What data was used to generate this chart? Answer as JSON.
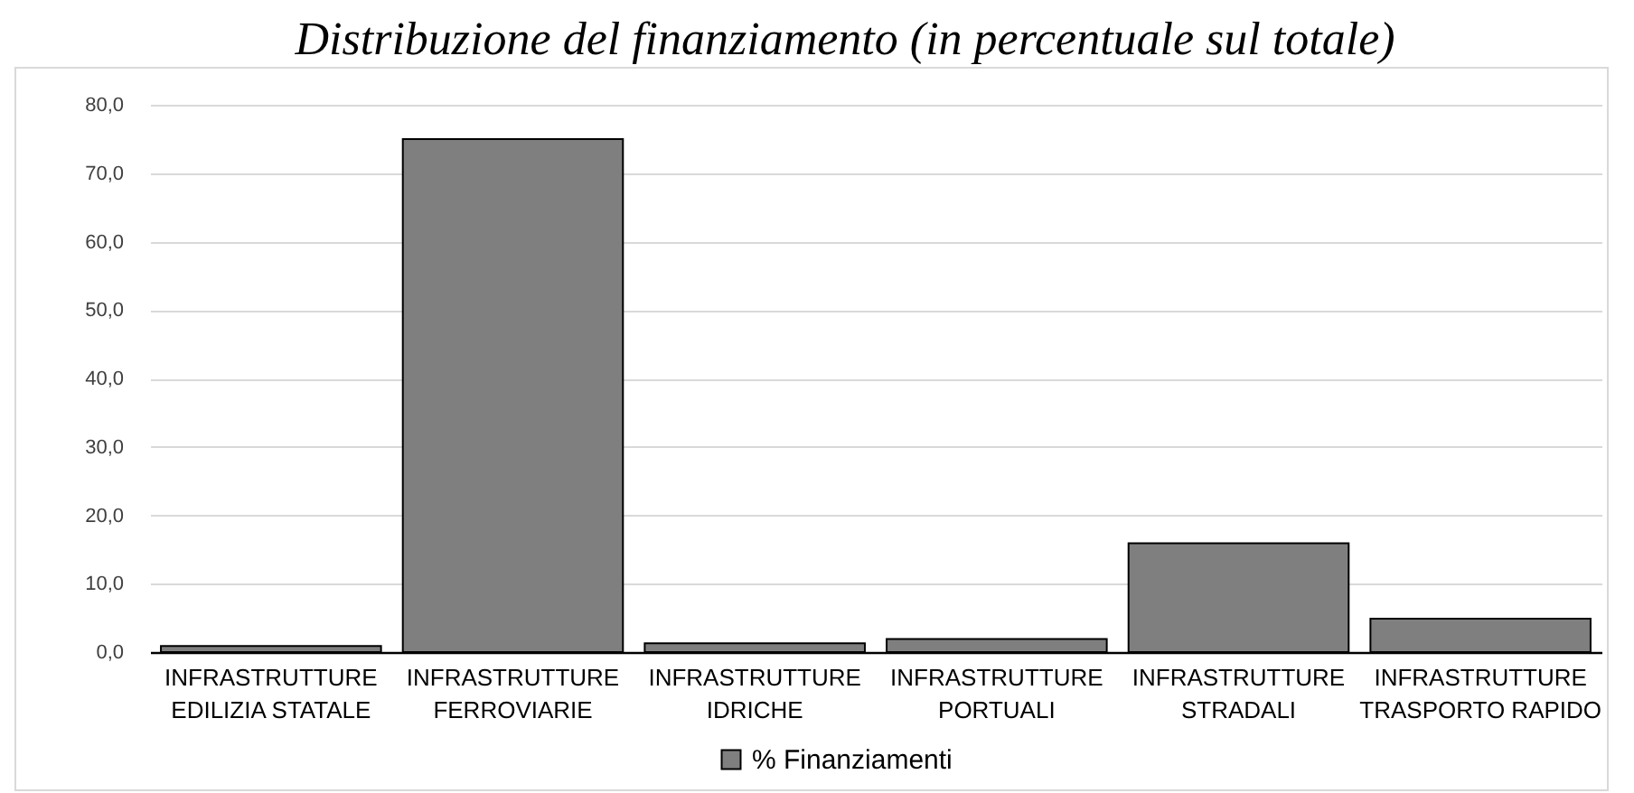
{
  "chart_data": {
    "type": "bar",
    "title": "Distribuzione del finanziamento (in percentuale sul totale)",
    "categories": [
      "INFRASTRUTTURE EDILIZIA STATALE",
      "INFRASTRUTTURE FERROVIARIE",
      "INFRASTRUTTURE IDRICHE",
      "INFRASTRUTTURE PORTUALI",
      "INFRASTRUTTURE STRADALI",
      "INFRASTRUTTURE TRASPORTO RAPIDO"
    ],
    "series": [
      {
        "name": "% Finanziamenti",
        "color": "#7f7f7f",
        "values": [
          0.9,
          75.0,
          1.3,
          1.9,
          15.9,
          4.9
        ]
      }
    ],
    "ylim": [
      0,
      80
    ],
    "yticks": [
      {
        "value": 0,
        "label": "0,0"
      },
      {
        "value": 10,
        "label": "10,0"
      },
      {
        "value": 20,
        "label": "20,0"
      },
      {
        "value": 30,
        "label": "30,0"
      },
      {
        "value": 40,
        "label": "40,0"
      },
      {
        "value": 50,
        "label": "50,0"
      },
      {
        "value": 60,
        "label": "60,0"
      },
      {
        "value": 70,
        "label": "70,0"
      },
      {
        "value": 80,
        "label": "80,0"
      }
    ],
    "grid": "y",
    "legend": "bottom"
  }
}
